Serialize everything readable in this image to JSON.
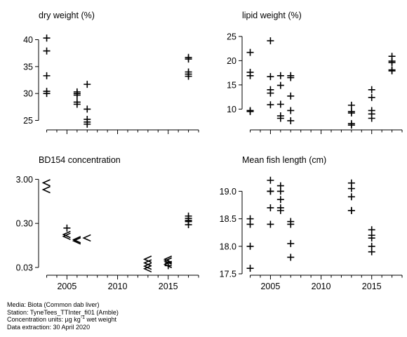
{
  "chart_data": [
    {
      "type": "scatter",
      "title": "dry weight (%)",
      "xlabel": "",
      "ylabel": "",
      "xlim": [
        2002.2,
        2018.0
      ],
      "ylim": [
        23.5,
        41.5
      ],
      "y_ticks": [
        25,
        30,
        35,
        40
      ],
      "y_tick_labels": [
        "25",
        "30",
        "35",
        "40"
      ],
      "x_ticks": [
        2005,
        2010,
        2015
      ],
      "x_tick_labels": [],
      "marker": "plus",
      "points": [
        {
          "x": 2003,
          "y": 40.3
        },
        {
          "x": 2003,
          "y": 37.9
        },
        {
          "x": 2003,
          "y": 33.3
        },
        {
          "x": 2003,
          "y": 30.4
        },
        {
          "x": 2003,
          "y": 30.0
        },
        {
          "x": 2006,
          "y": 30.3
        },
        {
          "x": 2006,
          "y": 30.0
        },
        {
          "x": 2006,
          "y": 29.7
        },
        {
          "x": 2006,
          "y": 28.4
        },
        {
          "x": 2006,
          "y": 28.0
        },
        {
          "x": 2007,
          "y": 31.7
        },
        {
          "x": 2007,
          "y": 27.1
        },
        {
          "x": 2007,
          "y": 25.2
        },
        {
          "x": 2007,
          "y": 24.7
        },
        {
          "x": 2007,
          "y": 24.3
        },
        {
          "x": 2017,
          "y": 36.7
        },
        {
          "x": 2017,
          "y": 36.4
        },
        {
          "x": 2017,
          "y": 34.0
        },
        {
          "x": 2017,
          "y": 33.6
        },
        {
          "x": 2017,
          "y": 33.2
        }
      ]
    },
    {
      "type": "scatter",
      "title": "lipid weight (%)",
      "xlabel": "",
      "ylabel": "",
      "xlim": [
        2002.2,
        2018.0
      ],
      "ylim": [
        6.0,
        26.0
      ],
      "y_ticks": [
        10,
        15,
        20,
        25
      ],
      "y_tick_labels": [
        "10",
        "15",
        "20",
        "25"
      ],
      "x_ticks": [
        2005,
        2010,
        2015
      ],
      "x_tick_labels": [],
      "marker": "plus",
      "points": [
        {
          "x": 2003,
          "y": 21.7
        },
        {
          "x": 2003,
          "y": 17.6
        },
        {
          "x": 2003,
          "y": 16.9
        },
        {
          "x": 2003,
          "y": 9.7
        },
        {
          "x": 2003,
          "y": 9.5
        },
        {
          "x": 2005,
          "y": 24.1
        },
        {
          "x": 2005,
          "y": 16.7
        },
        {
          "x": 2005,
          "y": 14.0
        },
        {
          "x": 2005,
          "y": 13.3
        },
        {
          "x": 2005,
          "y": 10.9
        },
        {
          "x": 2006,
          "y": 16.9
        },
        {
          "x": 2006,
          "y": 14.9
        },
        {
          "x": 2006,
          "y": 11.0
        },
        {
          "x": 2006,
          "y": 8.6
        },
        {
          "x": 2006,
          "y": 8.1
        },
        {
          "x": 2007,
          "y": 16.9
        },
        {
          "x": 2007,
          "y": 16.5
        },
        {
          "x": 2007,
          "y": 12.7
        },
        {
          "x": 2007,
          "y": 9.7
        },
        {
          "x": 2007,
          "y": 7.6
        },
        {
          "x": 2013,
          "y": 10.8
        },
        {
          "x": 2013,
          "y": 9.5
        },
        {
          "x": 2013,
          "y": 9.2
        },
        {
          "x": 2013,
          "y": 7.0
        },
        {
          "x": 2013,
          "y": 6.7
        },
        {
          "x": 2015,
          "y": 14.0
        },
        {
          "x": 2015,
          "y": 12.4
        },
        {
          "x": 2015,
          "y": 9.7
        },
        {
          "x": 2015,
          "y": 9.0
        },
        {
          "x": 2015,
          "y": 8.1
        },
        {
          "x": 2017,
          "y": 20.9
        },
        {
          "x": 2017,
          "y": 19.9
        },
        {
          "x": 2017,
          "y": 19.6
        },
        {
          "x": 2017,
          "y": 18.1
        },
        {
          "x": 2017,
          "y": 17.9
        }
      ]
    },
    {
      "type": "scatter",
      "title": "BD154 concentration",
      "xlabel": "",
      "ylabel": "",
      "y_scale": "log",
      "xlim": [
        2002.2,
        2018.0
      ],
      "ylim": [
        0.0215,
        4.4
      ],
      "y_ticks": [
        0.03,
        0.3,
        3.0
      ],
      "y_tick_labels": [
        "0.03",
        "0.30",
        "3.00"
      ],
      "x_ticks": [
        2005,
        2010,
        2015
      ],
      "x_tick_labels": [
        "2005",
        "2010",
        "2015"
      ],
      "marker_note": "< = less-than (below detection limit), + = measured value",
      "points": [
        {
          "x": 2003,
          "y": 2.5,
          "marker": "<"
        },
        {
          "x": 2003,
          "y": 1.75,
          "marker": "<"
        },
        {
          "x": 2005,
          "y": 0.235,
          "marker": "+"
        },
        {
          "x": 2005,
          "y": 0.168,
          "marker": "<"
        },
        {
          "x": 2005,
          "y": 0.152,
          "marker": "<"
        },
        {
          "x": 2006,
          "y": 0.128,
          "marker": "<"
        },
        {
          "x": 2006,
          "y": 0.12,
          "marker": "<"
        },
        {
          "x": 2007,
          "y": 0.14,
          "marker": "<"
        },
        {
          "x": 2013,
          "y": 0.046,
          "marker": "<"
        },
        {
          "x": 2013,
          "y": 0.038,
          "marker": "<"
        },
        {
          "x": 2013,
          "y": 0.032,
          "marker": "<"
        },
        {
          "x": 2013,
          "y": 0.028,
          "marker": "<"
        },
        {
          "x": 2015,
          "y": 0.046,
          "marker": "<"
        },
        {
          "x": 2015,
          "y": 0.042,
          "marker": "<"
        },
        {
          "x": 2015,
          "y": 0.038,
          "marker": "+"
        },
        {
          "x": 2015,
          "y": 0.035,
          "marker": "<"
        },
        {
          "x": 2015,
          "y": 0.033,
          "marker": "+"
        },
        {
          "x": 2017,
          "y": 0.44,
          "marker": "+"
        },
        {
          "x": 2017,
          "y": 0.39,
          "marker": "+"
        },
        {
          "x": 2017,
          "y": 0.35,
          "marker": "+"
        },
        {
          "x": 2017,
          "y": 0.33,
          "marker": "+"
        },
        {
          "x": 2017,
          "y": 0.28,
          "marker": "+"
        }
      ]
    },
    {
      "type": "scatter",
      "title": "Mean fish length (cm)",
      "xlabel": "",
      "ylabel": "",
      "xlim": [
        2002.2,
        2018.0
      ],
      "ylim": [
        17.5,
        19.35
      ],
      "y_ticks": [
        17.5,
        18.0,
        18.5,
        19.0
      ],
      "y_tick_labels": [
        "17.5",
        "18.0",
        "18.5",
        "19.0"
      ],
      "x_ticks": [
        2005,
        2010,
        2015
      ],
      "x_tick_labels": [
        "2005",
        "2010",
        "2015"
      ],
      "marker": "plus",
      "points": [
        {
          "x": 2003,
          "y": 18.5
        },
        {
          "x": 2003,
          "y": 18.4
        },
        {
          "x": 2003,
          "y": 18.0
        },
        {
          "x": 2003,
          "y": 17.6
        },
        {
          "x": 2005,
          "y": 19.2
        },
        {
          "x": 2005,
          "y": 19.0
        },
        {
          "x": 2005,
          "y": 19.0
        },
        {
          "x": 2005,
          "y": 18.7
        },
        {
          "x": 2005,
          "y": 18.4
        },
        {
          "x": 2006,
          "y": 19.1
        },
        {
          "x": 2006,
          "y": 19.0
        },
        {
          "x": 2006,
          "y": 18.85
        },
        {
          "x": 2006,
          "y": 18.7
        },
        {
          "x": 2006,
          "y": 18.65
        },
        {
          "x": 2007,
          "y": 18.45
        },
        {
          "x": 2007,
          "y": 18.4
        },
        {
          "x": 2007,
          "y": 18.05
        },
        {
          "x": 2007,
          "y": 17.8
        },
        {
          "x": 2013,
          "y": 19.15
        },
        {
          "x": 2013,
          "y": 19.05
        },
        {
          "x": 2013,
          "y": 18.9
        },
        {
          "x": 2013,
          "y": 18.65
        },
        {
          "x": 2013,
          "y": 18.65
        },
        {
          "x": 2015,
          "y": 18.3
        },
        {
          "x": 2015,
          "y": 18.2
        },
        {
          "x": 2015,
          "y": 18.15
        },
        {
          "x": 2015,
          "y": 18.0
        },
        {
          "x": 2015,
          "y": 17.9
        }
      ]
    }
  ],
  "footer": {
    "media": "Media: Biota (Common dab liver)",
    "station": "Station: TyneTees_TTInter_fi01 (Amble)",
    "units_prefix": "Concentration units:  µg kg",
    "units_exponent": "-1",
    "units_suffix": " wet weight",
    "extraction": "Data extraction: 30 April 2020"
  }
}
